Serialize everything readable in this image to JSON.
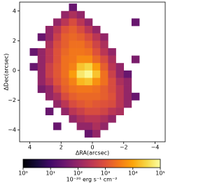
{
  "chart_data": {
    "type": "heatmap",
    "xlabel": "ΔRA(arcsec)",
    "ylabel": "ΔDec(arcsec)",
    "colorbar_label": "10⁻²⁰ erg s⁻¹ cm⁻²",
    "colormap": "inferno",
    "color_scale": "log",
    "clim": [
      1,
      100000
    ],
    "cticks": [
      {
        "value": 1,
        "label": "10⁰"
      },
      {
        "value": 10,
        "label": "10¹"
      },
      {
        "value": 100,
        "label": "10²"
      },
      {
        "value": 1000,
        "label": "10³"
      },
      {
        "value": 10000,
        "label": "10⁴"
      },
      {
        "value": 100000,
        "label": "10⁵"
      }
    ],
    "xlim": [
      4.65,
      -4.65
    ],
    "ylim": [
      -4.8,
      4.6
    ],
    "xticks": [
      4,
      2,
      0,
      {
        "value": -2,
        "label": "−2"
      },
      {
        "value": -4,
        "label": "−4"
      }
    ],
    "yticks": [
      {
        "value": -4,
        "label": "−4"
      },
      {
        "value": -2,
        "label": "−2"
      },
      0,
      2,
      4
    ],
    "x": [
      4.25,
      3.75,
      3.25,
      2.75,
      2.25,
      1.75,
      1.25,
      0.75,
      0.25,
      -0.25,
      -0.75,
      -1.25,
      -1.75,
      -2.25,
      -2.75,
      -3.25,
      -3.75,
      -4.25
    ],
    "y": [
      4.25,
      3.75,
      3.25,
      2.75,
      2.25,
      1.75,
      1.25,
      0.75,
      0.25,
      -0.25,
      -0.75,
      -1.25,
      -1.75,
      -2.25,
      -2.75,
      -3.25,
      -3.75,
      -4.25
    ],
    "z": [
      [
        null,
        null,
        null,
        null,
        null,
        null,
        30,
        null,
        null,
        null,
        null,
        null,
        null,
        null,
        null,
        null,
        null,
        null
      ],
      [
        null,
        null,
        null,
        null,
        null,
        100,
        200,
        100,
        null,
        null,
        null,
        null,
        null,
        null,
        null,
        null,
        null,
        null
      ],
      [
        null,
        null,
        null,
        null,
        100,
        300,
        800,
        300,
        100,
        null,
        null,
        null,
        null,
        null,
        30,
        null,
        null,
        null
      ],
      [
        null,
        null,
        null,
        100,
        300,
        1000,
        1500,
        800,
        300,
        100,
        null,
        null,
        null,
        null,
        null,
        null,
        null,
        null
      ],
      [
        null,
        null,
        30,
        100,
        500,
        1500,
        2000,
        1500,
        800,
        300,
        100,
        null,
        null,
        null,
        null,
        null,
        null,
        null
      ],
      [
        null,
        null,
        null,
        200,
        800,
        1500,
        2500,
        2500,
        1500,
        600,
        200,
        null,
        null,
        null,
        null,
        null,
        null,
        null
      ],
      [
        null,
        30,
        100,
        300,
        1000,
        2000,
        3000,
        3000,
        2500,
        1000,
        300,
        100,
        null,
        null,
        null,
        null,
        null,
        null
      ],
      [
        null,
        null,
        100,
        300,
        1000,
        2500,
        3000,
        5000,
        5000,
        2000,
        800,
        200,
        null,
        null,
        50,
        null,
        null,
        null
      ],
      [
        null,
        30,
        100,
        500,
        1200,
        2500,
        4000,
        20000,
        30000,
        8000,
        1500,
        300,
        100,
        null,
        null,
        null,
        null,
        null
      ],
      [
        null,
        null,
        100,
        500,
        1200,
        2500,
        8000,
        50000,
        80000,
        20000,
        2500,
        500,
        100,
        30,
        null,
        null,
        null,
        null
      ],
      [
        null,
        null,
        100,
        300,
        1000,
        2000,
        4000,
        15000,
        20000,
        6000,
        2500,
        800,
        200,
        100,
        null,
        null,
        null,
        null
      ],
      [
        null,
        null,
        50,
        100,
        500,
        1500,
        2500,
        3000,
        3000,
        2500,
        1500,
        800,
        300,
        100,
        null,
        null,
        null,
        null
      ],
      [
        null,
        null,
        null,
        100,
        200,
        800,
        1500,
        2000,
        2000,
        2000,
        1500,
        1000,
        300,
        100,
        30,
        null,
        null,
        null
      ],
      [
        null,
        null,
        null,
        null,
        100,
        300,
        800,
        1200,
        1500,
        1200,
        1000,
        800,
        300,
        100,
        null,
        null,
        null,
        null
      ],
      [
        null,
        null,
        null,
        30,
        null,
        100,
        300,
        500,
        800,
        800,
        600,
        300,
        200,
        null,
        null,
        null,
        null,
        null
      ],
      [
        null,
        null,
        null,
        null,
        null,
        null,
        100,
        200,
        300,
        300,
        200,
        100,
        null,
        null,
        null,
        null,
        null,
        null
      ],
      [
        null,
        null,
        null,
        null,
        30,
        null,
        null,
        100,
        100,
        200,
        100,
        null,
        null,
        null,
        null,
        null,
        null,
        null
      ],
      [
        null,
        null,
        null,
        null,
        null,
        null,
        null,
        null,
        30,
        100,
        null,
        null,
        null,
        null,
        null,
        null,
        null,
        null
      ]
    ]
  }
}
